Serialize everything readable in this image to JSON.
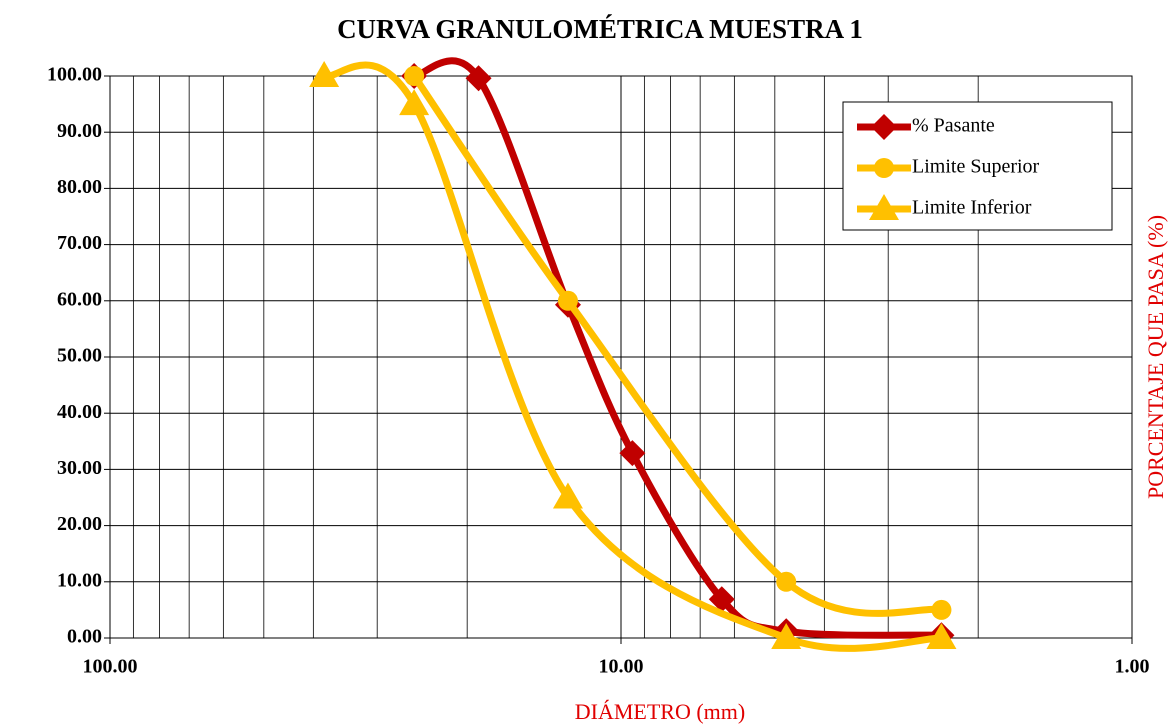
{
  "chart_data": {
    "type": "line",
    "title": "CURVA GRANULOMÉTRICA MUESTRA 1",
    "x_label": "DIÁMETRO (mm)",
    "y_label": "PORCENTAJE QUE PASA (%)",
    "axis_label_color": "#e00000",
    "xscale": "log",
    "xlim": [
      100,
      1
    ],
    "xticks": [
      {
        "value": 100,
        "label": "100.00"
      },
      {
        "value": 10,
        "label": "10.00"
      },
      {
        "value": 1,
        "label": "1.00"
      }
    ],
    "ylim": [
      0,
      100
    ],
    "yticks": [
      {
        "value": 0,
        "label": "0.00"
      },
      {
        "value": 10,
        "label": "10.00"
      },
      {
        "value": 20,
        "label": "20.00"
      },
      {
        "value": 30,
        "label": "30.00"
      },
      {
        "value": 40,
        "label": "40.00"
      },
      {
        "value": 50,
        "label": "50.00"
      },
      {
        "value": 60,
        "label": "60.00"
      },
      {
        "value": 70,
        "label": "70.00"
      },
      {
        "value": 80,
        "label": "80.00"
      },
      {
        "value": 90,
        "label": "90.00"
      },
      {
        "value": 100,
        "label": "100.00"
      }
    ],
    "grid": true,
    "minor_grid": true,
    "smooth": true,
    "legend": "upper right",
    "series": [
      {
        "name": "% Pasante",
        "color": "#c00000",
        "marker": "diamond",
        "x": [
          25.4,
          19.0,
          12.7,
          9.5,
          6.35,
          4.75,
          2.36
        ],
        "values": [
          100,
          99.6,
          59.3,
          32.9,
          6.9,
          1.2,
          0.5
        ]
      },
      {
        "name": "Limite Superior",
        "color": "#ffc000",
        "marker": "circle",
        "x": [
          25.4,
          12.7,
          4.75,
          2.36
        ],
        "values": [
          100,
          60,
          10,
          5
        ]
      },
      {
        "name": "Limite Inferior",
        "color": "#ffc000",
        "marker": "triangle",
        "x": [
          38.1,
          25.4,
          12.7,
          4.75,
          2.36
        ],
        "values": [
          100,
          95,
          25,
          0,
          0
        ]
      }
    ]
  }
}
